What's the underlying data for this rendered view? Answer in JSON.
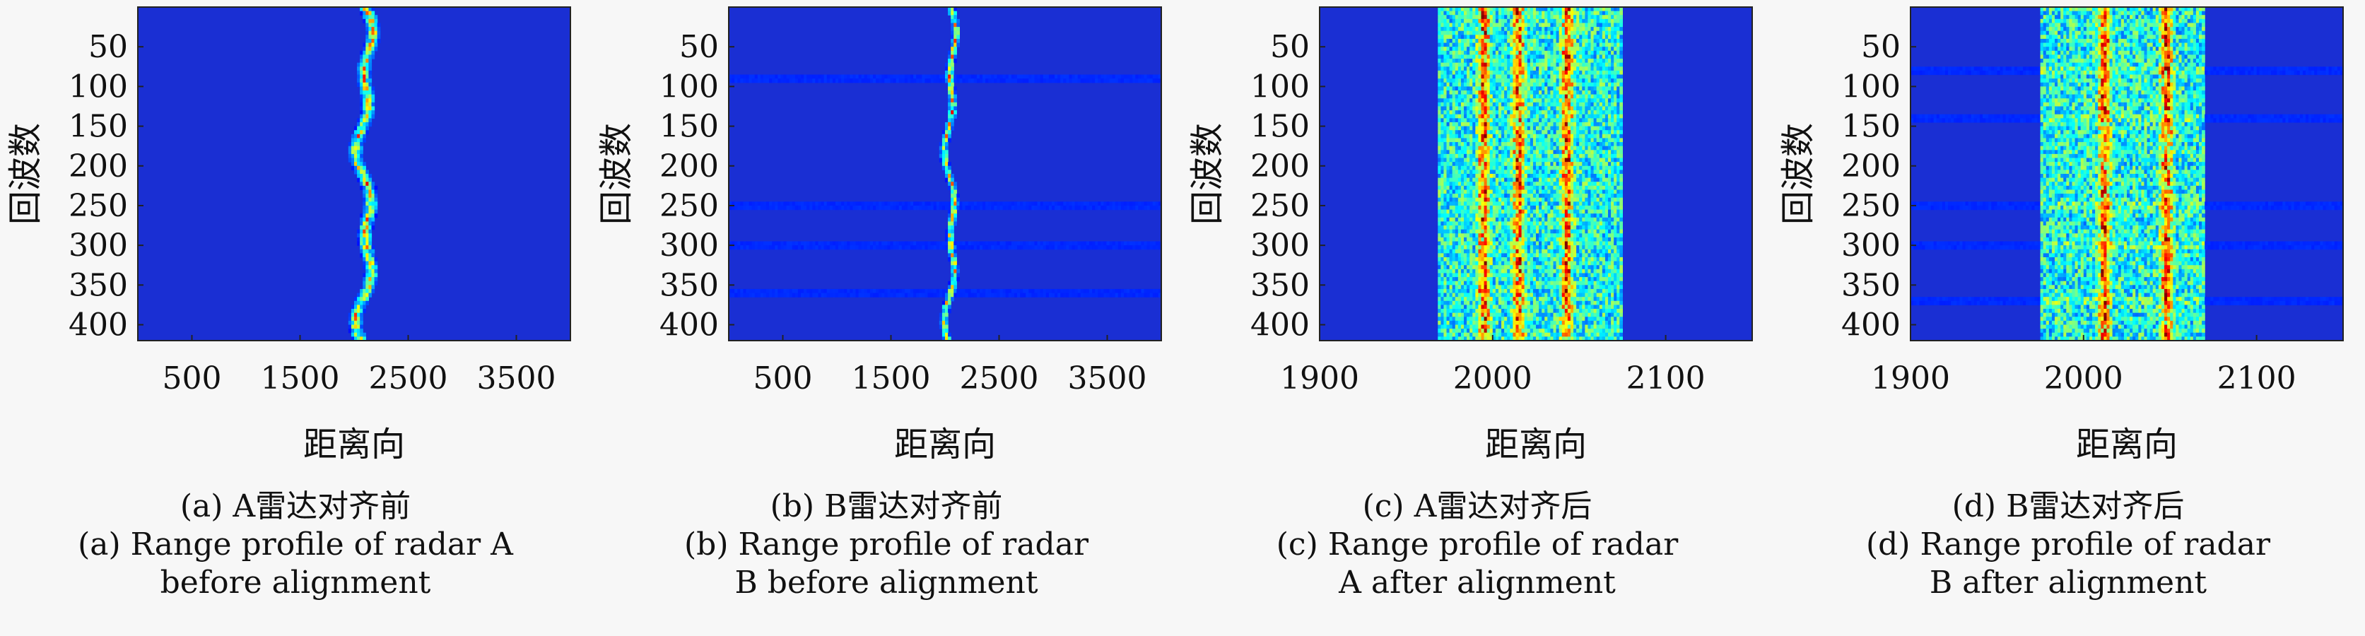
{
  "chart_data": [
    {
      "type": "heatmap",
      "panel": "a",
      "xlabel": "距离向",
      "ylabel": "回波数",
      "xlim": [
        0,
        4000
      ],
      "ylim": [
        0,
        420
      ],
      "xticks": [
        500,
        1500,
        2500,
        3500
      ],
      "yticks": [
        50,
        100,
        150,
        200,
        250,
        300,
        350,
        400
      ],
      "caption_cn": "(a) A雷达对齐前",
      "caption_en": [
        "(a) Range profile of radar A",
        "before alignment"
      ],
      "colormap": "jet",
      "background_color": "#1a2fd3",
      "track_center": 2100,
      "track_width": 70,
      "drift_amplitude": 90
    },
    {
      "type": "heatmap",
      "panel": "b",
      "xlabel": "距离向",
      "ylabel": "回波数",
      "xlim": [
        0,
        4000
      ],
      "ylim": [
        0,
        420
      ],
      "xticks": [
        500,
        1500,
        2500,
        3500
      ],
      "yticks": [
        50,
        100,
        150,
        200,
        250,
        300,
        350,
        400
      ],
      "caption_cn": "(b) B雷达对齐前",
      "caption_en": [
        "(b) Range profile of radar",
        "B before alignment"
      ],
      "colormap": "jet",
      "background_color": "#1a2fd3",
      "track_center": 2050,
      "track_width": 40,
      "drift_amplitude": 60,
      "bright_rows": [
        90,
        250,
        300,
        360
      ]
    },
    {
      "type": "heatmap",
      "panel": "c",
      "xlabel": "距离向",
      "ylabel": "回波数",
      "xlim": [
        1900,
        2150
      ],
      "ylim": [
        0,
        420
      ],
      "xticks": [
        1900,
        2000,
        2100
      ],
      "yticks": [
        50,
        100,
        150,
        200,
        250,
        300,
        350,
        400
      ],
      "caption_cn": "(c) A雷达对齐后",
      "caption_en": [
        "(c) Range profile of radar",
        "A after alignment"
      ],
      "colormap": "jet",
      "background_color": "#1a2fd3",
      "target_extent": [
        1968,
        2075
      ],
      "strong_scatterers": [
        1995,
        2015,
        2043
      ]
    },
    {
      "type": "heatmap",
      "panel": "d",
      "xlabel": "距离向",
      "ylabel": "回波数",
      "xlim": [
        1900,
        2150
      ],
      "ylim": [
        0,
        420
      ],
      "xticks": [
        1900,
        2000,
        2100
      ],
      "yticks": [
        50,
        100,
        150,
        200,
        250,
        300,
        350,
        400
      ],
      "caption_cn": "(d) B雷达对齐后",
      "caption_en": [
        "(d) Range profile of radar",
        "B after alignment"
      ],
      "colormap": "jet",
      "background_color": "#1a2fd3",
      "target_extent": [
        1975,
        2070
      ],
      "strong_scatterers": [
        2012,
        2048
      ],
      "bright_rows": [
        80,
        140,
        250,
        300,
        370
      ]
    }
  ]
}
